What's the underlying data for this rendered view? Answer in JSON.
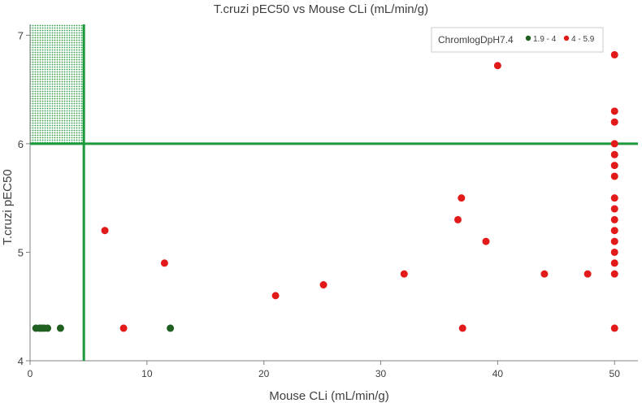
{
  "chart_data": {
    "type": "scatter",
    "title": "T.cruzi pEC50 vs Mouse CLi (mL/min/g)",
    "xlabel": "Mouse CLi (mL/min/g)",
    "ylabel": "T.cruzi pEC50",
    "xlim": [
      0,
      52
    ],
    "ylim": [
      4,
      7.1
    ],
    "x_ticks": [
      0,
      10,
      20,
      30,
      40,
      50
    ],
    "y_ticks": [
      4,
      5,
      6,
      7
    ],
    "grid": false,
    "legend": {
      "title": "ChromlogDpH7.4",
      "position": "top-right"
    },
    "threshold_lines": {
      "x": 4.6,
      "y": 6.0,
      "color": "#1a9a3a"
    },
    "target_region": {
      "x": [
        0,
        4.6
      ],
      "y": [
        6.0,
        7.1
      ],
      "pattern": "dotted-green"
    },
    "series": [
      {
        "name": "1.9 - 4",
        "color": "#1f5f1f",
        "points": [
          [
            0.5,
            4.3
          ],
          [
            0.8,
            4.3
          ],
          [
            1.0,
            4.3
          ],
          [
            1.2,
            4.3
          ],
          [
            1.5,
            4.3
          ],
          [
            2.6,
            4.3
          ],
          [
            12.0,
            4.3
          ]
        ]
      },
      {
        "name": "4 - 5.9",
        "color": "#e31a1a",
        "points": [
          [
            6.4,
            5.2
          ],
          [
            8.0,
            4.3
          ],
          [
            11.5,
            4.9
          ],
          [
            21.0,
            4.6
          ],
          [
            25.1,
            4.7
          ],
          [
            32.0,
            4.8
          ],
          [
            36.6,
            5.3
          ],
          [
            36.9,
            5.5
          ],
          [
            37.0,
            4.3
          ],
          [
            39.0,
            5.1
          ],
          [
            40.0,
            6.72
          ],
          [
            44.0,
            4.8
          ],
          [
            47.7,
            4.8
          ],
          [
            50,
            6.82
          ],
          [
            50,
            6.3
          ],
          [
            50,
            6.2
          ],
          [
            50,
            6.0
          ],
          [
            50,
            5.9
          ],
          [
            50,
            5.8
          ],
          [
            50,
            5.7
          ],
          [
            50,
            5.5
          ],
          [
            50,
            5.4
          ],
          [
            50,
            5.3
          ],
          [
            50,
            5.2
          ],
          [
            50,
            5.1
          ],
          [
            50,
            5.0
          ],
          [
            50,
            4.9
          ],
          [
            50,
            4.8
          ],
          [
            50,
            4.3
          ]
        ]
      }
    ]
  }
}
